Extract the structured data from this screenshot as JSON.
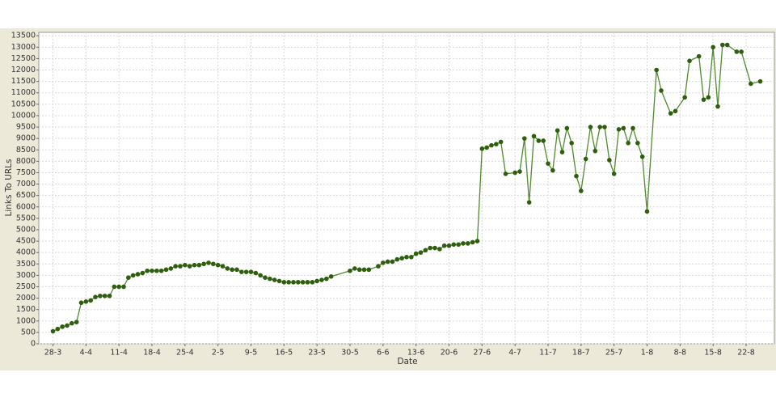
{
  "chart_data": {
    "type": "line",
    "x_label": "Date",
    "y_label": "Links To URLs",
    "x": [
      "28-3",
      "29-3",
      "30-3",
      "31-3",
      "1-4",
      "2-4",
      "3-4",
      "4-4",
      "5-4",
      "6-4",
      "7-4",
      "8-4",
      "9-4",
      "10-4",
      "11-4",
      "12-4",
      "13-4",
      "14-4",
      "15-4",
      "16-4",
      "17-4",
      "18-4",
      "19-4",
      "20-4",
      "21-4",
      "22-4",
      "23-4",
      "24-4",
      "25-4",
      "26-4",
      "27-4",
      "28-4",
      "29-4",
      "30-4",
      "1-5",
      "2-5",
      "3-5",
      "4-5",
      "5-5",
      "6-5",
      "7-5",
      "8-5",
      "9-5",
      "10-5",
      "11-5",
      "12-5",
      "13-5",
      "14-5",
      "15-5",
      "16-5",
      "17-5",
      "18-5",
      "19-5",
      "20-5",
      "21-5",
      "22-5",
      "23-5",
      "24-5",
      "25-5",
      "26-5",
      "30-5",
      "31-5",
      "1-6",
      "2-6",
      "3-6",
      "5-6",
      "6-6",
      "7-6",
      "8-6",
      "9-6",
      "10-6",
      "11-6",
      "12-6",
      "13-6",
      "14-6",
      "15-6",
      "16-6",
      "17-6",
      "18-6",
      "19-6",
      "20-6",
      "21-6",
      "22-6",
      "23-6",
      "24-6",
      "25-6",
      "26-6",
      "27-6",
      "28-6",
      "29-6",
      "30-6",
      "1-7",
      "2-7",
      "4-7",
      "5-7",
      "6-7",
      "7-7",
      "8-7",
      "9-7",
      "10-7",
      "11-7",
      "12-7",
      "13-7",
      "14-7",
      "15-7",
      "16-7",
      "17-7",
      "18-7",
      "19-7",
      "20-7",
      "21-7",
      "22-7",
      "23-7",
      "24-7",
      "25-7",
      "26-7",
      "27-7",
      "28-7",
      "29-7",
      "30-7",
      "31-7",
      "1-8",
      "3-8",
      "4-8",
      "6-8",
      "7-8",
      "9-8",
      "10-8",
      "12-8",
      "13-8",
      "14-8",
      "15-8",
      "16-8",
      "17-8",
      "18-8",
      "20-8",
      "21-8",
      "23-8",
      "25-8"
    ],
    "series": [
      {
        "name": "Links To URLs",
        "color": "#4f8a2c",
        "marker_color": "#2f5f0e",
        "values": [
          550,
          650,
          750,
          800,
          900,
          950,
          1800,
          1850,
          1900,
          2050,
          2100,
          2100,
          2100,
          2500,
          2500,
          2500,
          2900,
          3000,
          3050,
          3100,
          3200,
          3200,
          3200,
          3200,
          3250,
          3300,
          3400,
          3400,
          3450,
          3400,
          3450,
          3450,
          3500,
          3550,
          3500,
          3450,
          3400,
          3300,
          3250,
          3250,
          3150,
          3150,
          3150,
          3100,
          3000,
          2900,
          2850,
          2800,
          2750,
          2700,
          2700,
          2700,
          2700,
          2700,
          2700,
          2700,
          2750,
          2800,
          2850,
          2950,
          3200,
          3300,
          3250,
          3250,
          3250,
          3400,
          3550,
          3600,
          3600,
          3700,
          3750,
          3800,
          3800,
          3950,
          4000,
          4100,
          4200,
          4200,
          4150,
          4300,
          4300,
          4350,
          4350,
          4400,
          4400,
          4450,
          4500,
          8550,
          8600,
          8700,
          8750,
          8850,
          7450,
          7500,
          7550,
          9000,
          6200,
          9100,
          8900,
          8900,
          7900,
          7600,
          9350,
          8400,
          9450,
          8800,
          7350,
          6700,
          8100,
          9500,
          8450,
          9500,
          9500,
          8050,
          7450,
          9400,
          9450,
          8800,
          9450,
          8800,
          8200,
          5800,
          12000,
          11100,
          10100,
          10200,
          10800,
          12400,
          12600,
          10700,
          10800,
          13000,
          10400,
          13100,
          13100,
          12800,
          12800,
          11400,
          11500
        ]
      }
    ],
    "xlim": [
      "25-3",
      "28-8"
    ],
    "xticks": [
      "28-3",
      "4-4",
      "11-4",
      "18-4",
      "25-4",
      "2-5",
      "9-5",
      "16-5",
      "23-5",
      "30-5",
      "6-6",
      "13-6",
      "20-6",
      "27-6",
      "4-7",
      "11-7",
      "18-7",
      "25-7",
      "1-8",
      "8-8",
      "15-8",
      "22-8"
    ],
    "ylim": [
      0,
      13650
    ],
    "yticks": [
      0,
      500,
      1000,
      1500,
      2000,
      2500,
      3000,
      3500,
      4000,
      4500,
      5000,
      5500,
      6000,
      6500,
      7000,
      7500,
      8000,
      8500,
      9000,
      9500,
      10000,
      10500,
      11000,
      11500,
      12000,
      12500,
      13000,
      13500
    ],
    "grid": true
  }
}
